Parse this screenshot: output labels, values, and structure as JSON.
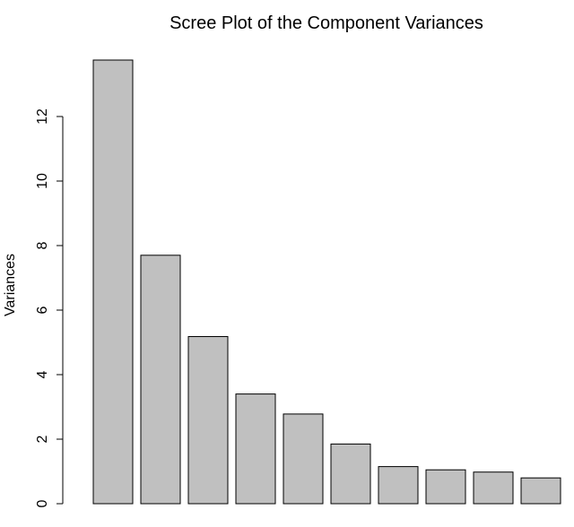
{
  "chart_data": {
    "type": "bar",
    "title": "Scree Plot of the Component Variances",
    "xlabel": "",
    "ylabel": "Variances",
    "categories": [
      "",
      "",
      "",
      "",
      "",
      "",
      "",
      "",
      "",
      ""
    ],
    "values": [
      13.75,
      7.7,
      5.18,
      3.4,
      2.78,
      1.85,
      1.15,
      1.05,
      0.98,
      0.8
    ],
    "ylim": [
      0,
      14
    ],
    "yticks": [
      0,
      2,
      4,
      6,
      8,
      10,
      12
    ],
    "grid": false,
    "legend": "none",
    "colors": {
      "bar_fill": "#c0c0c0",
      "bar_stroke": "#000000"
    }
  }
}
